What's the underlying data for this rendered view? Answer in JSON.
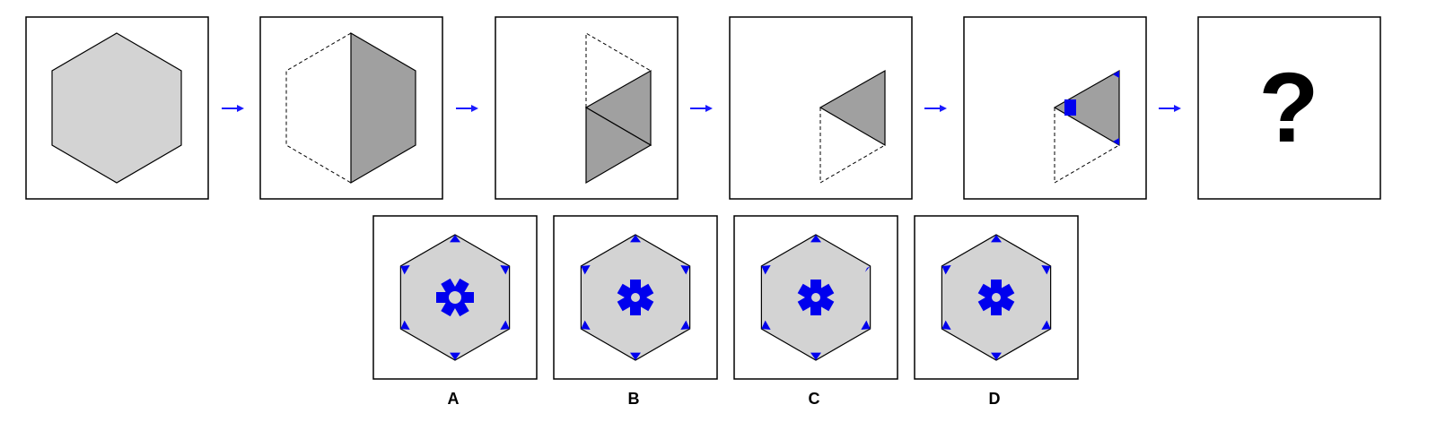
{
  "sequence": {
    "steps": [
      {
        "id": "step-1-full-hexagon"
      },
      {
        "id": "step-2-fold-left-half"
      },
      {
        "id": "step-3-fold-triangles"
      },
      {
        "id": "step-4-fold-to-triangle"
      },
      {
        "id": "step-5-punched-triangle"
      }
    ],
    "question_mark": "?",
    "arrow_color": "#1a1aff"
  },
  "options": [
    {
      "label": "A",
      "variant": "a"
    },
    {
      "label": "B",
      "variant": "b"
    },
    {
      "label": "C",
      "variant": "c"
    },
    {
      "label": "D",
      "variant": "d"
    }
  ],
  "colors": {
    "paper_light": "#d3d3d3",
    "paper_dark": "#a0a0a0",
    "hole": "#0000ee",
    "frame": "#000000"
  }
}
